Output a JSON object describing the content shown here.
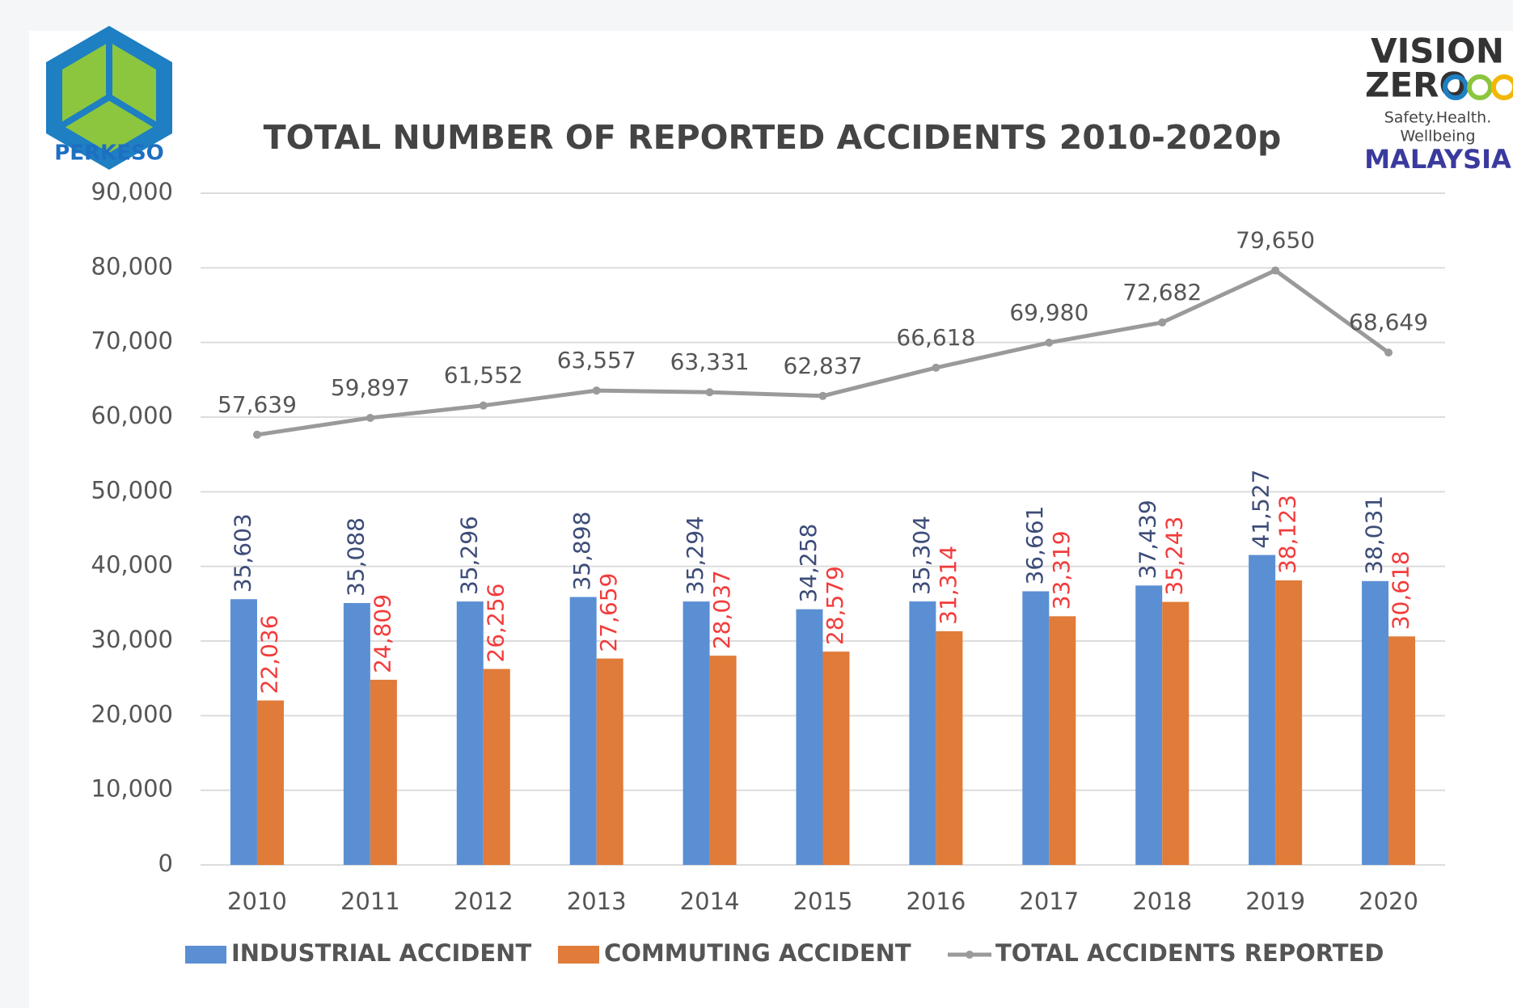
{
  "branding": {
    "left": "PERKESO",
    "right": [
      "VISION",
      "ZERO",
      "Safety.Health.",
      "Wellbeing",
      "MALAYSIA"
    ]
  },
  "chart_data": {
    "type": "bar",
    "title": "TOTAL NUMBER OF REPORTED ACCIDENTS 2010-2020p",
    "categories": [
      "2010",
      "2011",
      "2012",
      "2013",
      "2014",
      "2015",
      "2016",
      "2017",
      "2018",
      "2019",
      "2020"
    ],
    "series": [
      {
        "name": "INDUSTRIAL ACCIDENT",
        "type": "bar",
        "color": "#5B8FD4",
        "label_color": "#3D4C78",
        "values": [
          35603,
          35088,
          35296,
          35898,
          35294,
          34258,
          35304,
          36661,
          37439,
          41527,
          38031
        ],
        "value_labels": [
          "35,603",
          "35,088",
          "35,296",
          "35,898",
          "35,294",
          "34,258",
          "35,304",
          "36,661",
          "37,439",
          "41,527",
          "38,031"
        ]
      },
      {
        "name": "COMMUTING ACCIDENT",
        "type": "bar",
        "color": "#E07B39",
        "label_color": "#F23C3C",
        "values": [
          22036,
          24809,
          26256,
          27659,
          28037,
          28579,
          31314,
          33319,
          35243,
          38123,
          30618
        ],
        "value_labels": [
          "22,036",
          "24,809",
          "26,256",
          "27,659",
          "28,037",
          "28,579",
          "31,314",
          "33,319",
          "35,243",
          "38,123",
          "30,618"
        ]
      },
      {
        "name": "TOTAL ACCIDENTS REPORTED",
        "type": "line",
        "color": "#9A9A9A",
        "label_color": "#555555",
        "values": [
          57639,
          59897,
          61552,
          63557,
          63331,
          62837,
          66618,
          69980,
          72682,
          79650,
          68649
        ],
        "value_labels": [
          "57,639",
          "59,897",
          "61,552",
          "63,557",
          "63,331",
          "62,837",
          "66,618",
          "69,980",
          "72,682",
          "79,650",
          "68,649"
        ]
      }
    ],
    "ylim": [
      0,
      90000
    ],
    "yticks": [
      {
        "value": 0,
        "label": "0"
      },
      {
        "value": 10000,
        "label": "10,000"
      },
      {
        "value": 20000,
        "label": "20,000"
      },
      {
        "value": 30000,
        "label": "30,000"
      },
      {
        "value": 40000,
        "label": "40,000"
      },
      {
        "value": 50000,
        "label": "50,000"
      },
      {
        "value": 60000,
        "label": "60,000"
      },
      {
        "value": 70000,
        "label": "70,000"
      },
      {
        "value": 80000,
        "label": "80,000"
      },
      {
        "value": 90000,
        "label": "90,000"
      }
    ],
    "grid": true,
    "legend": "bottom"
  }
}
